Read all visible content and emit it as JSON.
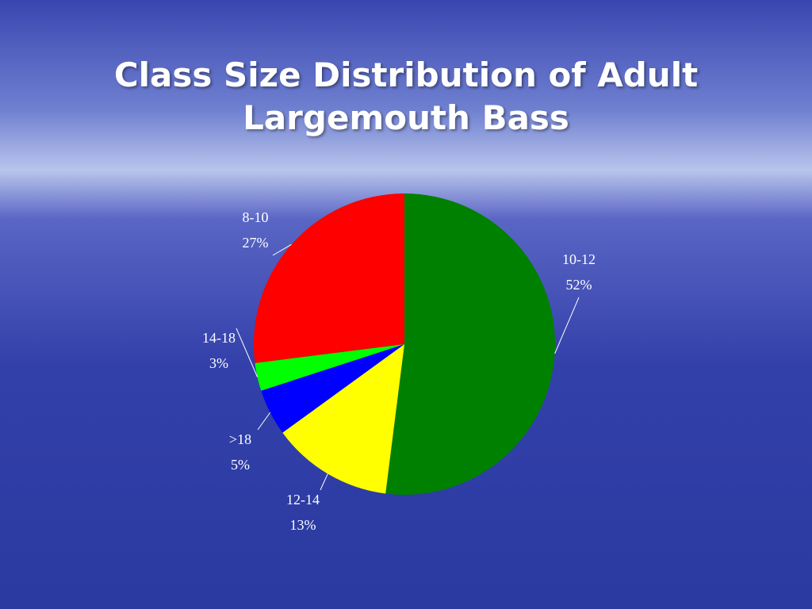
{
  "chart_data": {
    "type": "pie",
    "title": "Class Size Distribution of Adult Largemouth Bass",
    "categories": [
      "10-12",
      "12-14",
      ">18",
      "14-18",
      "8-10"
    ],
    "values": [
      52,
      13,
      5,
      3,
      27
    ],
    "value_labels": [
      "52%",
      "13%",
      "5%",
      "3%",
      "27%"
    ],
    "colors": [
      "#008000",
      "#ffff00",
      "#0000ff",
      "#00ff00",
      "#ff0000"
    ]
  }
}
